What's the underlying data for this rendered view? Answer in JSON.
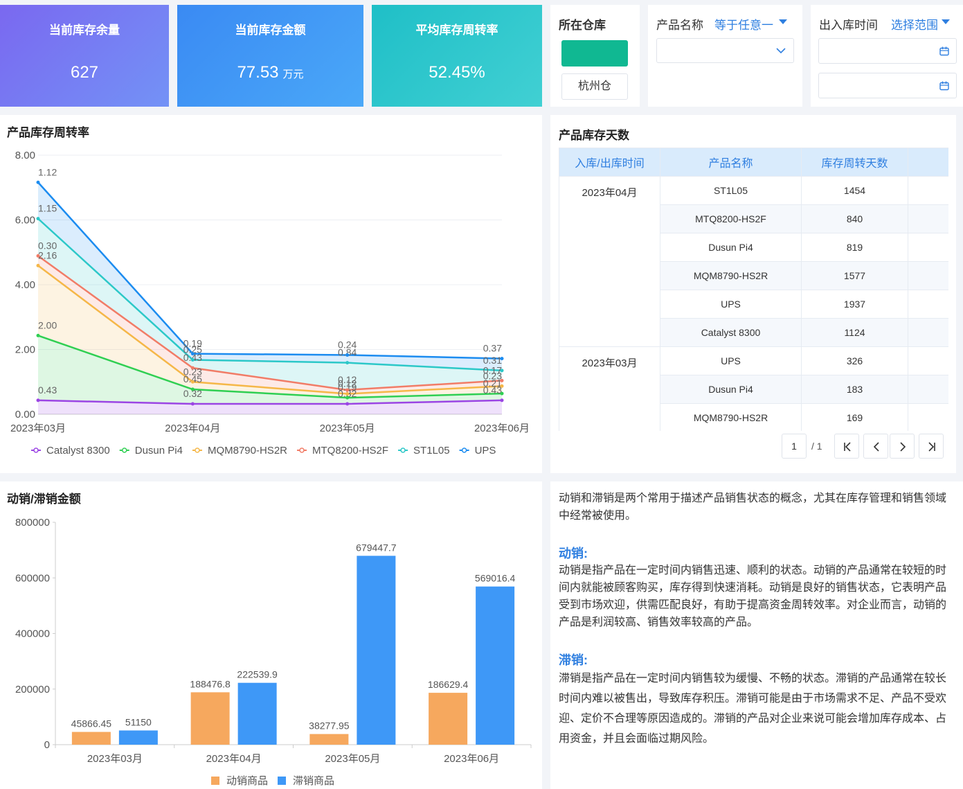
{
  "kpis": [
    {
      "title": "当前库存余量",
      "value": "627"
    },
    {
      "title": "当前库存金额",
      "value": "77.53",
      "unit": "万元"
    },
    {
      "title": "平均库存周转率",
      "value": "52.45%"
    }
  ],
  "filters": {
    "warehouse": {
      "label": "所在仓库",
      "option": "杭州仓"
    },
    "product": {
      "label": "产品名称",
      "operator": "等于任意一"
    },
    "time": {
      "label": "出入库时间",
      "operator": "选择范围"
    }
  },
  "chart_data": [
    {
      "type": "line",
      "stacked": true,
      "area": true,
      "title": "产品库存周转率",
      "categories": [
        "2023年03月",
        "2023年04月",
        "2023年05月",
        "2023年06月"
      ],
      "series": [
        {
          "name": "Catalyst 8300",
          "color": "#9b45e4",
          "values": [
            0.43,
            0.32,
            0.32,
            0.43
          ],
          "value_labels": [
            "0.43",
            "0.32",
            "0.32",
            "0.43"
          ]
        },
        {
          "name": "Dusun Pi4",
          "color": "#2fcf52",
          "values": [
            2.0,
            0.45,
            0.19,
            0.21
          ],
          "value_labels": [
            "2.00",
            "0.45",
            "0.19",
            "0.21"
          ]
        },
        {
          "name": "MQM8790-HS2R",
          "color": "#f5b748",
          "values": [
            2.16,
            0.23,
            0.12,
            0.23
          ],
          "value_labels": [
            "2.16",
            "0.23",
            "0.12",
            "0.23"
          ]
        },
        {
          "name": "MTQ8200-HS2F",
          "color": "#f17c67",
          "values": [
            0.3,
            0.43,
            0.12,
            0.17
          ],
          "value_labels": [
            "0.30",
            "0.43",
            "0.12",
            "0.17"
          ]
        },
        {
          "name": "ST1L05",
          "color": "#2cc8c8",
          "values": [
            1.15,
            0.25,
            0.84,
            0.31
          ],
          "value_labels": [
            "1.15",
            "0.25",
            "0.84",
            "0.31"
          ]
        },
        {
          "name": "UPS",
          "color": "#1c8cf0",
          "values": [
            1.12,
            0.19,
            0.24,
            0.37
          ],
          "value_labels": [
            "1.12",
            "0.19",
            "0.24",
            "0.37"
          ]
        }
      ],
      "ylim": [
        0,
        8
      ],
      "yticks": [
        {
          "value": 0,
          "label": "0.00"
        },
        {
          "value": 2,
          "label": "2.00"
        },
        {
          "value": 4,
          "label": "4.00"
        },
        {
          "value": 6,
          "label": "6.00"
        },
        {
          "value": 8,
          "label": "8.00"
        }
      ],
      "grid": true,
      "legend": "bottom"
    },
    {
      "type": "bar",
      "title": "动销/滞销金额",
      "categories": [
        "2023年03月",
        "2023年04月",
        "2023年05月",
        "2023年06月"
      ],
      "series": [
        {
          "name": "动销商品",
          "color": "#f6a85e",
          "values": [
            45866.45,
            188476.8,
            38277.95,
            186629.4
          ]
        },
        {
          "name": "滞销商品",
          "color": "#3e98f7",
          "values": [
            51150,
            222539.9,
            679447.7,
            569016.4
          ]
        }
      ],
      "ylim": [
        0,
        800000
      ],
      "yticks": [
        0,
        200000,
        400000,
        600000,
        800000
      ],
      "grid": false,
      "legend": "bottom"
    }
  ],
  "table": {
    "title": "产品库存天数",
    "columns": [
      "入库/出库时间",
      "产品名称",
      "库存周转天数"
    ],
    "groups": [
      {
        "time": "2023年04月",
        "rows": [
          [
            "ST1L05",
            1454
          ],
          [
            "MTQ8200-HS2F",
            840
          ],
          [
            "Dusun Pi4",
            819
          ],
          [
            "MQM8790-HS2R",
            1577
          ],
          [
            "UPS",
            1937
          ],
          [
            "Catalyst 8300",
            1124
          ]
        ]
      },
      {
        "time": "2023年03月",
        "rows": [
          [
            "UPS",
            326
          ],
          [
            "Dusun Pi4",
            183
          ],
          [
            "MQM8790-HS2R",
            169
          ]
        ]
      }
    ]
  },
  "pagination": {
    "page": "1",
    "total": "/ 1"
  },
  "notes": {
    "intro": "动销和滞销是两个常用于描述产品销售状态的概念，尤其在库存管理和销售领域中经常被使用。",
    "sections": [
      {
        "heading": "动销:",
        "text": "动销是指产品在一定时间内销售迅速、顺利的状态。动销的产品通常在较短的时间内就能被顾客购买，库存得到快速消耗。动销是良好的销售状态，它表明产品受到市场欢迎，供需匹配良好，有助于提高资金周转效率。对企业而言，动销的产品是利润较高、销售效率较高的产品。"
      },
      {
        "heading": "滞销:",
        "text": "滞销是指产品在一定时间内销售较为缓慢、不畅的状态。滞销的产品通常在较长时间内难以被售出，导致库存积压。滞销可能是由于市场需求不足、产品不受欢迎、定价不合理等原因造成的。滞销的产品对企业来说可能会增加库存成本、占用资金，并且会面临过期风险。"
      }
    ]
  }
}
